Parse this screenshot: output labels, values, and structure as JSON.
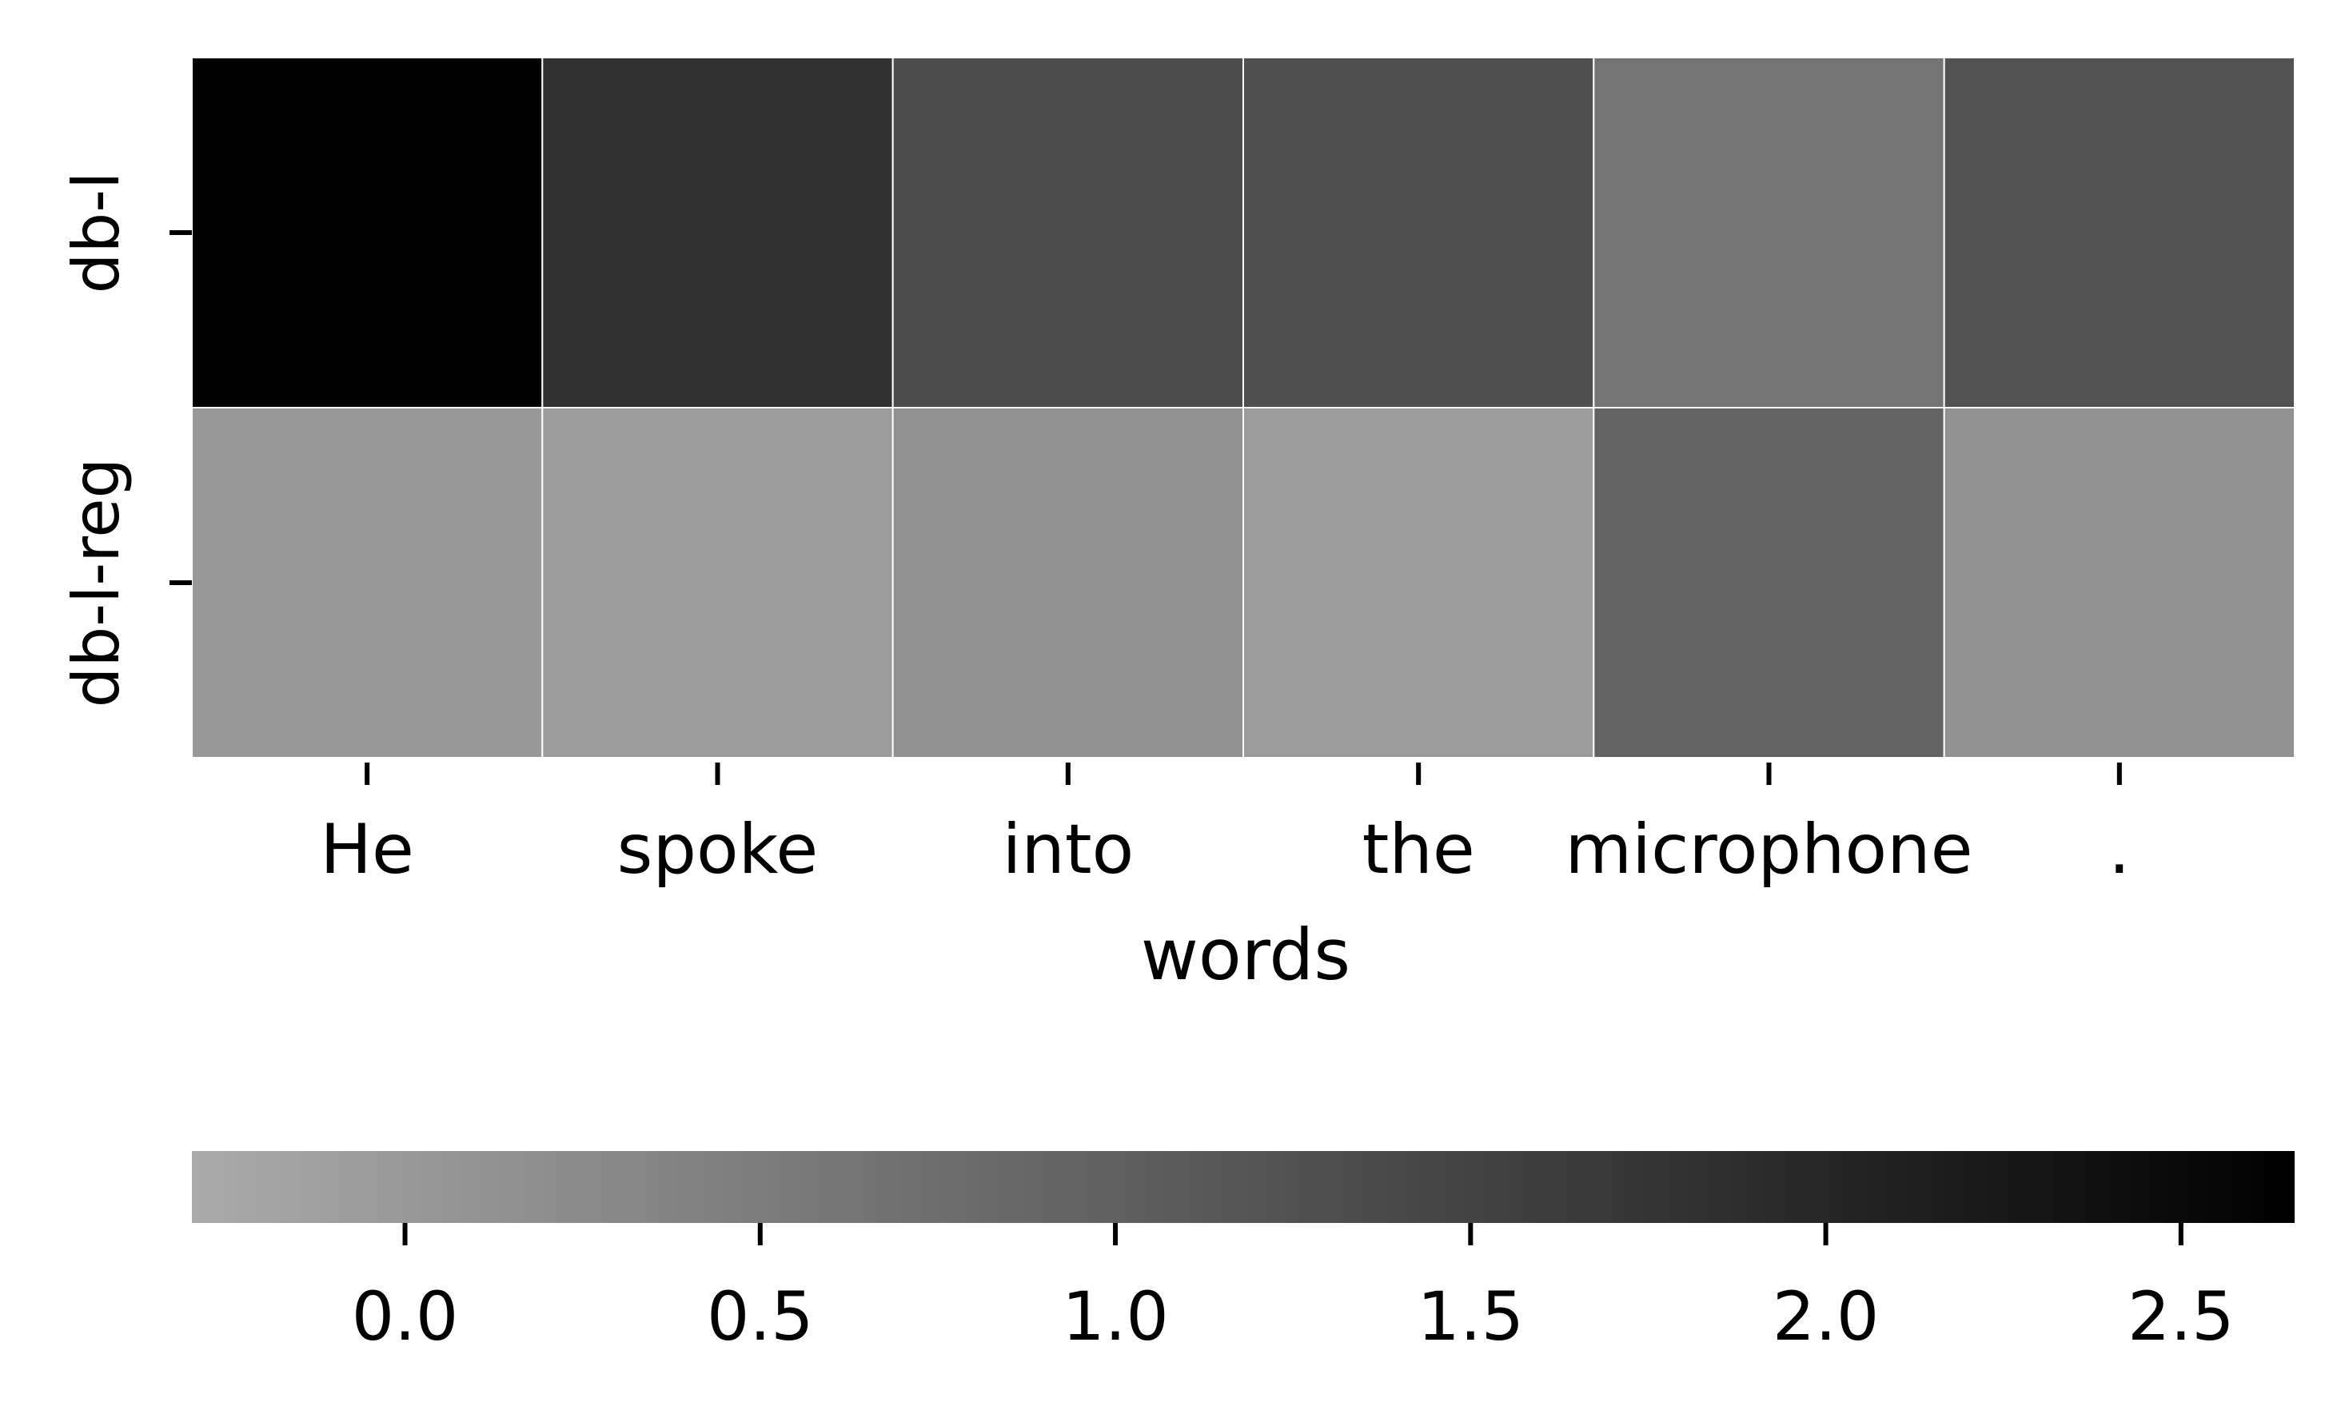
{
  "chart_data": {
    "type": "heatmap",
    "title": "",
    "xlabel": "words",
    "ylabel": "",
    "x_categories": [
      "He",
      "spoke",
      "into",
      "the",
      "microphone",
      "."
    ],
    "y_categories": [
      "db-l",
      "db-l-reg"
    ],
    "values": [
      [
        2.66,
        1.8,
        1.33,
        1.28,
        0.64,
        1.23
      ],
      [
        -0.01,
        -0.05,
        0.12,
        -0.04,
        0.95,
        0.11
      ]
    ],
    "colorbar": {
      "range": [
        -0.3,
        2.66
      ],
      "ticks": [
        0.0,
        0.5,
        1.0,
        1.5,
        2.0,
        2.5
      ],
      "tick_labels": [
        "0.0",
        "0.5",
        "1.0",
        "1.5",
        "2.0",
        "2.5"
      ],
      "orientation": "horizontal",
      "placement": "bottom",
      "color_low": "#aaaaaa",
      "color_high": "#000000"
    },
    "grid": false,
    "cell_border_color": "#ffffff"
  }
}
